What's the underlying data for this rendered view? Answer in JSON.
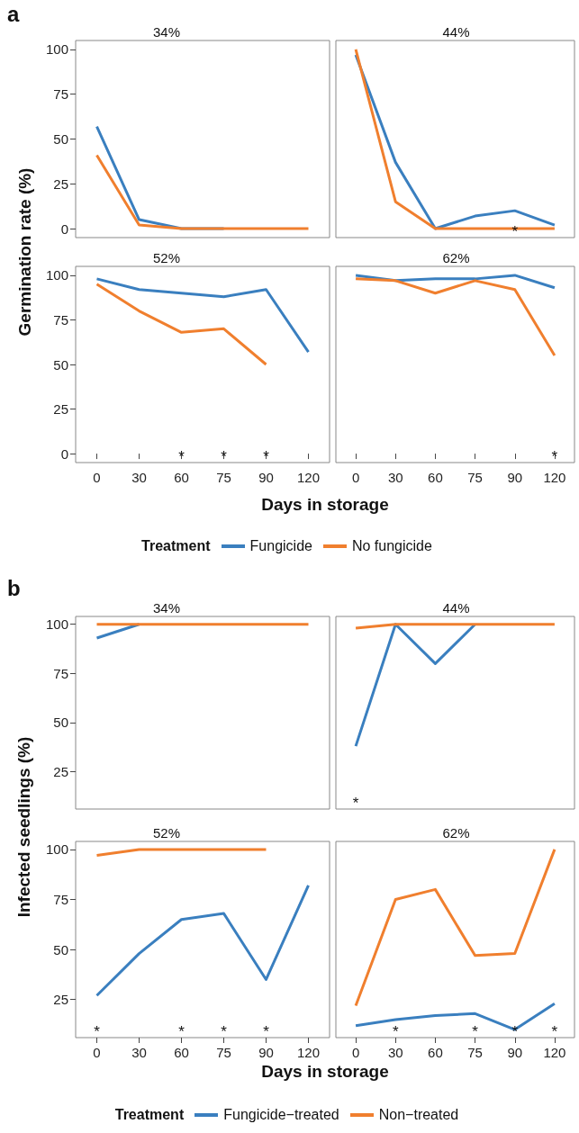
{
  "chart_data": [
    {
      "type": "line",
      "title": "34%",
      "ylabel": "Germination rate (%)",
      "annotations": [
        "a"
      ],
      "categories": [
        "0",
        "30",
        "60",
        "75",
        "90",
        "120"
      ],
      "ylim": [
        -5,
        105
      ],
      "yticks": [
        0,
        25,
        50,
        75,
        100
      ],
      "grid": false,
      "tick_labels": "y",
      "series": [
        {
          "color": "#3a7fbf",
          "values": [
            57,
            5,
            0,
            0,
            null,
            null
          ]
        },
        {
          "color": "#f07f2e",
          "values": [
            41,
            2,
            0,
            0,
            0,
            0
          ]
        }
      ]
    },
    {
      "type": "line",
      "title": "44%",
      "annotations": [
        "*"
      ],
      "categories": [
        "0",
        "30",
        "60",
        "75",
        "90",
        "120"
      ],
      "ylim": [
        -5,
        105
      ],
      "yticks": [
        0,
        25,
        50,
        75,
        100
      ],
      "grid": false,
      "tick_labels": false,
      "series": [
        {
          "color": "#3a7fbf",
          "values": [
            97,
            37,
            0,
            7,
            10,
            2
          ]
        },
        {
          "color": "#f07f2e",
          "values": [
            100,
            15,
            0,
            0,
            0,
            0
          ]
        }
      ]
    },
    {
      "type": "line",
      "title": "52%",
      "xlabel": "Days in storage",
      "annotations": [
        "*",
        "*",
        "*"
      ],
      "categories": [
        "0",
        "30",
        "60",
        "75",
        "90",
        "120"
      ],
      "ylim": [
        -5,
        105
      ],
      "yticks": [
        0,
        25,
        50,
        75,
        100
      ],
      "grid": false,
      "series": [
        {
          "color": "#3a7fbf",
          "values": [
            98,
            92,
            90,
            88,
            92,
            57
          ]
        },
        {
          "color": "#f07f2e",
          "values": [
            95,
            80,
            68,
            70,
            50,
            null
          ]
        }
      ]
    },
    {
      "type": "line",
      "title": "62%",
      "legend": "bottom",
      "legend_title": "Treatment",
      "annotations": [
        "*"
      ],
      "categories": [
        "0",
        "30",
        "60",
        "75",
        "90",
        "120"
      ],
      "ylim": [
        -5,
        105
      ],
      "yticks": [
        0,
        25,
        50,
        75,
        100
      ],
      "grid": false,
      "tick_labels": "x",
      "series": [
        {
          "name": "Fungicide",
          "color": "#3a7fbf",
          "values": [
            100,
            97,
            98,
            98,
            100,
            93
          ]
        },
        {
          "name": "No fungicide",
          "color": "#f07f2e",
          "values": [
            98,
            97,
            90,
            97,
            92,
            55
          ]
        }
      ]
    },
    {
      "type": "line",
      "title": "34%",
      "ylabel": "Infected seedlings (%)",
      "annotations": [
        "b"
      ],
      "categories": [
        "0",
        "30",
        "60",
        "75",
        "90",
        "120"
      ],
      "ylim": [
        6,
        104
      ],
      "yticks": [
        25,
        50,
        75,
        100
      ],
      "grid": false,
      "tick_labels": "y",
      "series": [
        {
          "color": "#3a7fbf",
          "values": [
            93,
            100,
            null,
            null,
            null,
            null
          ]
        },
        {
          "color": "#f07f2e",
          "values": [
            100,
            100,
            100,
            100,
            100,
            100
          ]
        }
      ]
    },
    {
      "type": "line",
      "title": "44%",
      "annotations": [
        "*"
      ],
      "categories": [
        "0",
        "30",
        "60",
        "75",
        "90",
        "120"
      ],
      "ylim": [
        6,
        104
      ],
      "yticks": [
        25,
        50,
        75,
        100
      ],
      "grid": false,
      "tick_labels": false,
      "series": [
        {
          "color": "#3a7fbf",
          "values": [
            38,
            100,
            80,
            100,
            null,
            null
          ]
        },
        {
          "color": "#f07f2e",
          "values": [
            98,
            100,
            100,
            100,
            100,
            100
          ]
        }
      ]
    },
    {
      "type": "line",
      "title": "52%",
      "xlabel": "Days in storage",
      "annotations": [
        "*",
        "*",
        "*",
        "*"
      ],
      "categories": [
        "0",
        "30",
        "60",
        "75",
        "90",
        "120"
      ],
      "ylim": [
        6,
        104
      ],
      "yticks": [
        25,
        50,
        75,
        100
      ],
      "grid": false,
      "series": [
        {
          "color": "#3a7fbf",
          "values": [
            27,
            48,
            65,
            68,
            35,
            82
          ]
        },
        {
          "color": "#f07f2e",
          "values": [
            97,
            100,
            100,
            100,
            100,
            null
          ]
        }
      ]
    },
    {
      "type": "line",
      "title": "62%",
      "legend": "bottom",
      "legend_title": "Treatment",
      "annotations": [
        "*",
        "*",
        "*",
        "*"
      ],
      "categories": [
        "0",
        "30",
        "60",
        "75",
        "90",
        "120"
      ],
      "ylim": [
        6,
        104
      ],
      "yticks": [
        25,
        50,
        75,
        100
      ],
      "grid": false,
      "tick_labels": "x",
      "series": [
        {
          "name": "Fungicide−treated",
          "color": "#3a7fbf",
          "values": [
            12,
            15,
            17,
            18,
            10,
            23
          ]
        },
        {
          "name": "Non−treated",
          "color": "#f07f2e",
          "values": [
            22,
            75,
            80,
            47,
            48,
            100
          ]
        }
      ]
    }
  ]
}
